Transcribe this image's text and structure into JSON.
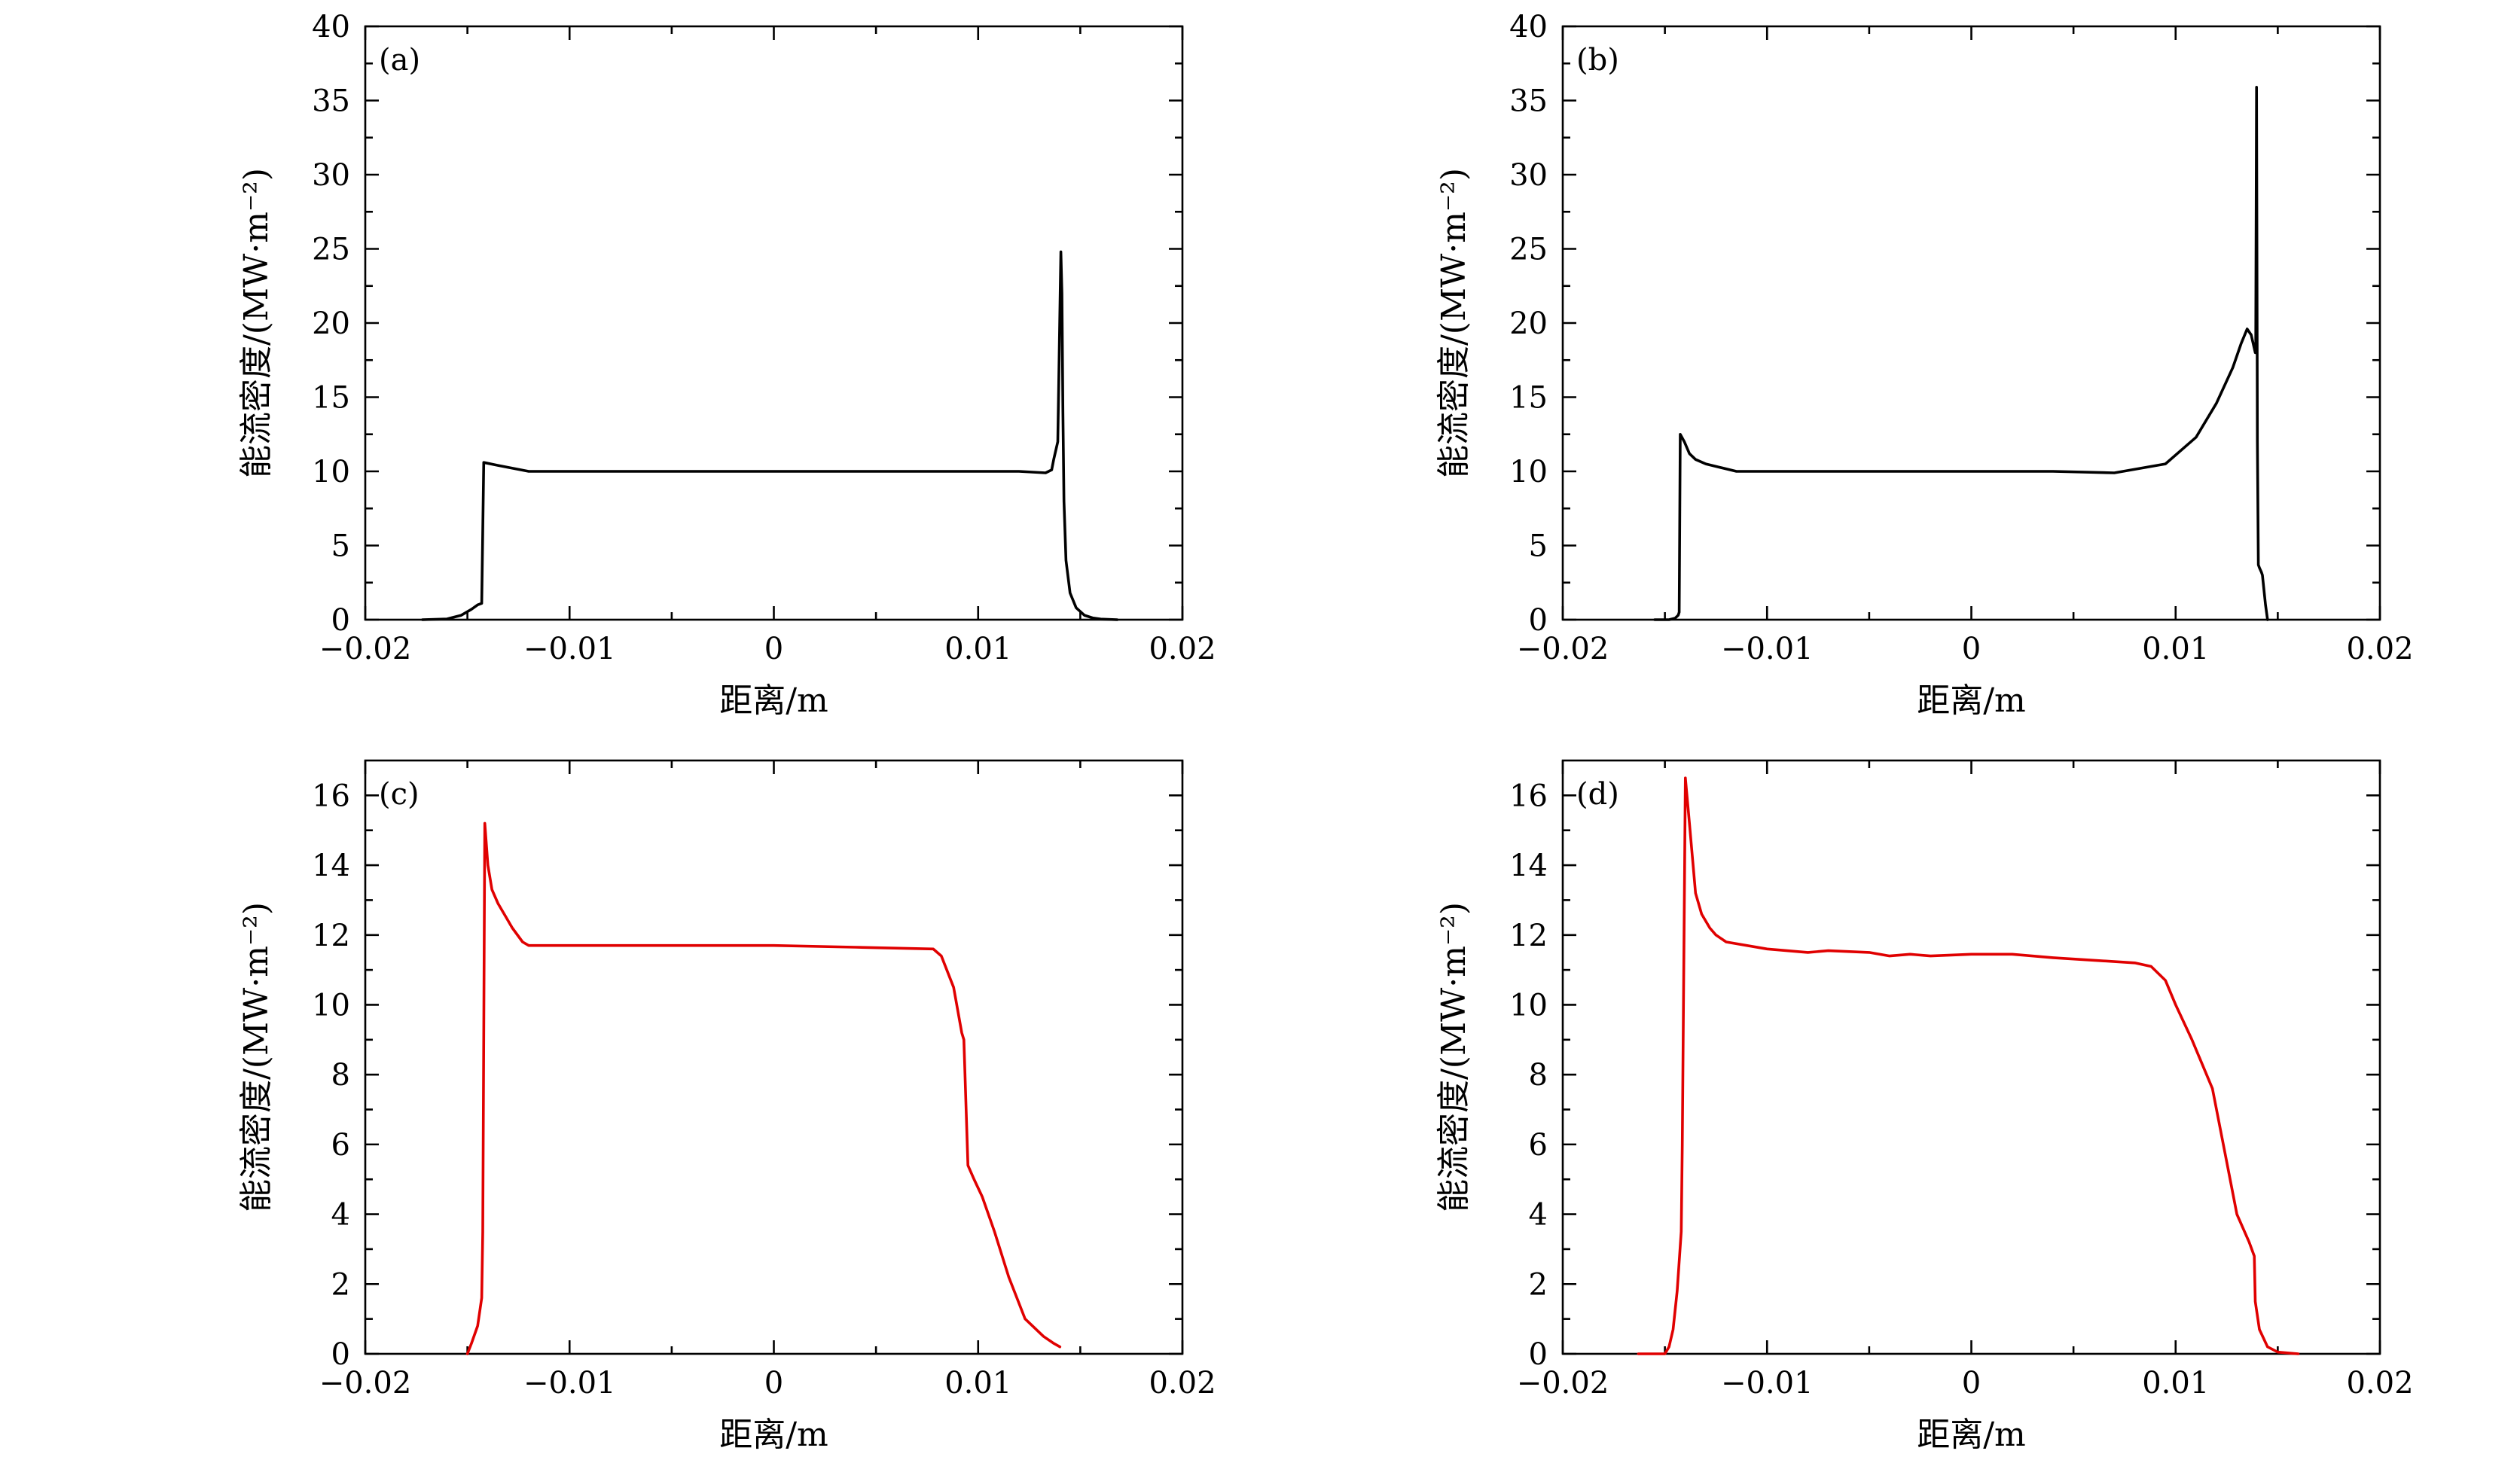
{
  "figure": {
    "colors": {
      "black_series": "#000000",
      "red_series": "#e00000"
    }
  },
  "chart_data": [
    {
      "type": "line",
      "panel": "(a)",
      "xlabel": "距离/m",
      "ylabel": "能流密度/(MW·m⁻²)",
      "xlim": [
        -0.02,
        0.02
      ],
      "ylim": [
        0,
        40
      ],
      "xticks": [
        -0.02,
        -0.01,
        0,
        0.01,
        0.02
      ],
      "xtick_labels": [
        "−0.02",
        "−0.01",
        "0",
        "0.01",
        "0.02"
      ],
      "yticks": [
        0,
        5,
        10,
        15,
        20,
        25,
        30,
        35,
        40
      ],
      "ytick_labels": [
        "0",
        "5",
        "10",
        "15",
        "20",
        "25",
        "30",
        "35",
        "40"
      ],
      "grid": false,
      "color": "#000000",
      "series": [
        {
          "x": [
            -0.0172,
            -0.016,
            -0.0153,
            -0.0148,
            -0.0145,
            -0.0143,
            -0.01425,
            -0.0142,
            -0.0135,
            -0.012,
            -0.008,
            -0.002,
            0.004,
            0.008,
            0.012,
            0.0133,
            0.0136,
            0.0137,
            0.0139,
            0.01405,
            0.0141,
            0.01415,
            0.0142,
            0.0143,
            0.0145,
            0.0148,
            0.0152,
            0.0156,
            0.016,
            0.0168
          ],
          "y": [
            0,
            0.05,
            0.3,
            0.7,
            1.0,
            1.1,
            6,
            10.6,
            10.4,
            10.0,
            10.0,
            10.0,
            10.0,
            10.0,
            10.0,
            9.9,
            10.1,
            10.8,
            12.0,
            24.8,
            22.0,
            14.0,
            8.0,
            4.0,
            1.8,
            0.8,
            0.3,
            0.12,
            0.04,
            0
          ]
        }
      ]
    },
    {
      "type": "line",
      "panel": "(b)",
      "xlabel": "距离/m",
      "ylabel": "能流密度/(MW·m⁻²)",
      "xlim": [
        -0.02,
        0.02
      ],
      "ylim": [
        0,
        40
      ],
      "xticks": [
        -0.02,
        -0.01,
        0,
        0.01,
        0.02
      ],
      "xtick_labels": [
        "−0.02",
        "−0.01",
        "0",
        "0.01",
        "0.02"
      ],
      "yticks": [
        0,
        5,
        10,
        15,
        20,
        25,
        30,
        35,
        40
      ],
      "ytick_labels": [
        "0",
        "5",
        "10",
        "15",
        "20",
        "25",
        "30",
        "35",
        "40"
      ],
      "grid": false,
      "color": "#000000",
      "series": [
        {
          "x": [
            -0.0155,
            -0.0148,
            -0.0145,
            -0.01435,
            -0.0143,
            -0.01425,
            -0.01405,
            -0.0138,
            -0.0135,
            -0.013,
            -0.0124,
            -0.0115,
            -0.008,
            0,
            0.004,
            0.007,
            0.0095,
            0.011,
            0.012,
            0.0128,
            0.0132,
            0.0135,
            0.0137,
            0.0139,
            0.01392,
            0.01396,
            0.014,
            0.01405,
            0.0141,
            0.0142,
            0.01425,
            0.0144,
            0.0145
          ],
          "y": [
            0,
            0,
            0.1,
            0.3,
            0.5,
            12.5,
            12.0,
            11.2,
            10.8,
            10.5,
            10.3,
            10.0,
            10.0,
            10.0,
            10.0,
            9.9,
            10.5,
            12.3,
            14.6,
            17.0,
            18.6,
            19.6,
            19.2,
            18.0,
            18.0,
            35.9,
            12.0,
            3.7,
            3.5,
            3.2,
            3.0,
            1.0,
            0
          ]
        }
      ]
    },
    {
      "type": "line",
      "panel": "(c)",
      "xlabel": "距离/m",
      "ylabel": "能流密度/(MW·m⁻²)",
      "xlim": [
        -0.02,
        0.02
      ],
      "ylim": [
        0,
        17
      ],
      "xticks": [
        -0.02,
        -0.01,
        0,
        0.01,
        0.02
      ],
      "xtick_labels": [
        "−0.02",
        "−0.01",
        "0",
        "0.01",
        "0.02"
      ],
      "yticks": [
        0,
        2,
        4,
        6,
        8,
        10,
        12,
        14,
        16
      ],
      "ytick_labels": [
        "0",
        "2",
        "4",
        "6",
        "8",
        "10",
        "12",
        "14",
        "16"
      ],
      "grid": false,
      "color": "#e00000",
      "series": [
        {
          "x": [
            -0.015,
            -0.0148,
            -0.0145,
            -0.0143,
            -0.01425,
            -0.01415,
            -0.014,
            -0.0138,
            -0.0135,
            -0.0132,
            -0.0128,
            -0.0123,
            -0.012,
            -0.008,
            -0.004,
            0,
            0.004,
            0.0078,
            0.0082,
            0.0088,
            0.0092,
            0.0093,
            0.0095,
            0.0098,
            0.0102,
            0.0108,
            0.0115,
            0.0123,
            0.0132,
            0.0137,
            0.014
          ],
          "y": [
            0,
            0.3,
            0.8,
            1.6,
            3.5,
            15.2,
            14.0,
            13.3,
            12.9,
            12.6,
            12.2,
            11.8,
            11.7,
            11.7,
            11.7,
            11.7,
            11.65,
            11.6,
            11.4,
            10.5,
            9.2,
            9.0,
            5.4,
            5.0,
            4.5,
            3.5,
            2.2,
            1.0,
            0.5,
            0.3,
            0.2
          ]
        }
      ]
    },
    {
      "type": "line",
      "panel": "(d)",
      "xlabel": "距离/m",
      "ylabel": "能流密度/(MW·m⁻²)",
      "xlim": [
        -0.02,
        0.02
      ],
      "ylim": [
        0,
        17
      ],
      "xticks": [
        -0.02,
        -0.01,
        0,
        0.01,
        0.02
      ],
      "xtick_labels": [
        "−0.02",
        "−0.01",
        "0",
        "0.01",
        "0.02"
      ],
      "yticks": [
        0,
        2,
        4,
        6,
        8,
        10,
        12,
        14,
        16
      ],
      "ytick_labels": [
        "0",
        "2",
        "4",
        "6",
        "8",
        "10",
        "12",
        "14",
        "16"
      ],
      "grid": false,
      "color": "#e00000",
      "series": [
        {
          "x": [
            -0.0163,
            -0.015,
            -0.0148,
            -0.0146,
            -0.0144,
            -0.0142,
            -0.01415,
            -0.014,
            -0.0138,
            -0.0135,
            -0.0132,
            -0.0128,
            -0.0125,
            -0.012,
            -0.01,
            -0.008,
            -0.007,
            -0.005,
            -0.004,
            -0.003,
            -0.002,
            0,
            0.002,
            0.004,
            0.008,
            0.0088,
            0.0095,
            0.01,
            0.0108,
            0.0118,
            0.0125,
            0.013,
            0.0136,
            0.01385,
            0.0139,
            0.0141,
            0.0145,
            0.015,
            0.016
          ],
          "y": [
            0,
            0,
            0.2,
            0.7,
            1.8,
            3.5,
            6.0,
            16.5,
            15.2,
            13.2,
            12.6,
            12.2,
            12.0,
            11.8,
            11.6,
            11.5,
            11.55,
            11.5,
            11.4,
            11.45,
            11.4,
            11.45,
            11.45,
            11.35,
            11.2,
            11.1,
            10.7,
            10.0,
            9.0,
            7.6,
            5.5,
            4.0,
            3.2,
            2.8,
            1.5,
            0.7,
            0.2,
            0.05,
            0
          ]
        }
      ]
    }
  ]
}
